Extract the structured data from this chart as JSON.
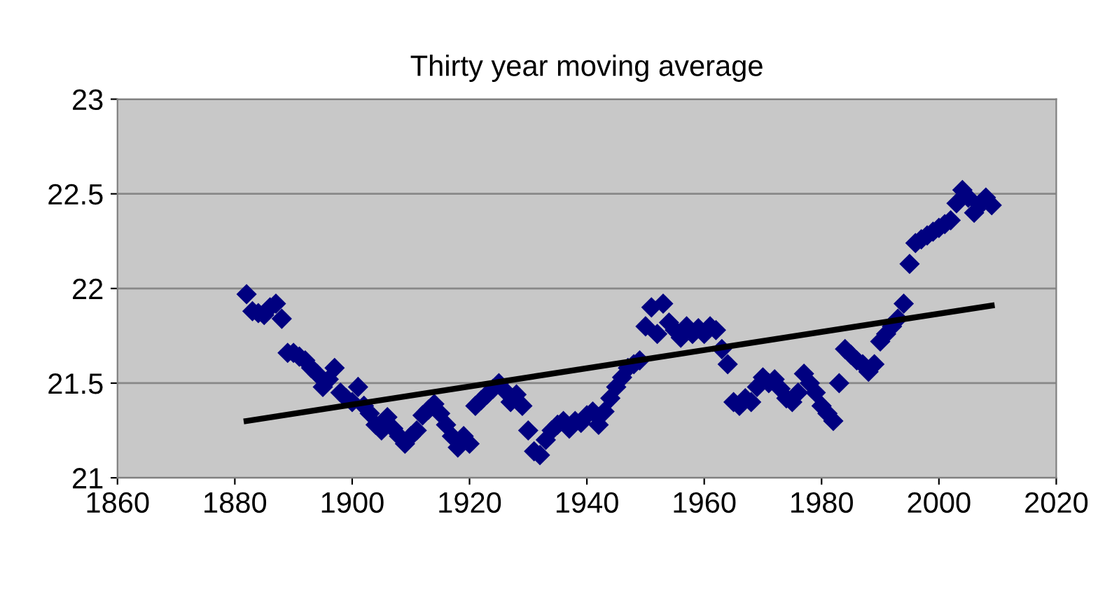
{
  "chart_data": {
    "type": "scatter",
    "title": "Thirty year moving average",
    "xlim": [
      1860,
      2020
    ],
    "xticks": [
      1860,
      1880,
      1900,
      1920,
      1940,
      1960,
      1980,
      2000,
      2020
    ],
    "ylim": [
      21,
      23
    ],
    "yticks": [
      21,
      21.5,
      22,
      22.5,
      23
    ],
    "grid": "y",
    "legend": false,
    "series": [
      {
        "color": "#000080",
        "marker": "diamond",
        "x": [
          1882,
          1883,
          1884,
          1885,
          1886,
          1887,
          1888,
          1889,
          1890,
          1891,
          1892,
          1893,
          1894,
          1895,
          1896,
          1897,
          1898,
          1899,
          1900,
          1901,
          1902,
          1903,
          1904,
          1905,
          1906,
          1907,
          1908,
          1909,
          1910,
          1911,
          1912,
          1913,
          1914,
          1915,
          1916,
          1917,
          1918,
          1919,
          1920,
          1921,
          1922,
          1923,
          1924,
          1925,
          1926,
          1927,
          1928,
          1929,
          1930,
          1931,
          1932,
          1933,
          1934,
          1935,
          1936,
          1937,
          1938,
          1939,
          1940,
          1941,
          1942,
          1943,
          1944,
          1945,
          1946,
          1947,
          1948,
          1949,
          1950,
          1951,
          1952,
          1953,
          1954,
          1955,
          1956,
          1957,
          1958,
          1959,
          1960,
          1961,
          1962,
          1963,
          1964,
          1965,
          1966,
          1967,
          1968,
          1969,
          1970,
          1971,
          1972,
          1973,
          1974,
          1975,
          1976,
          1977,
          1978,
          1979,
          1980,
          1981,
          1982,
          1983,
          1984,
          1985,
          1986,
          1987,
          1988,
          1989,
          1990,
          1991,
          1992,
          1993,
          1994,
          1995,
          1996,
          1997,
          1998,
          1999,
          2000,
          2001,
          2002,
          2003,
          2004,
          2005,
          2006,
          2007,
          2008,
          2009
        ],
        "values": [
          21.97,
          21.88,
          21.87,
          21.86,
          21.9,
          21.92,
          21.84,
          21.66,
          21.66,
          21.64,
          21.62,
          21.58,
          21.55,
          21.48,
          21.52,
          21.58,
          21.45,
          21.42,
          21.4,
          21.48,
          21.38,
          21.34,
          21.28,
          21.25,
          21.32,
          21.26,
          21.22,
          21.18,
          21.22,
          21.25,
          21.33,
          21.36,
          21.39,
          21.34,
          21.28,
          21.22,
          21.16,
          21.22,
          21.18,
          21.38,
          21.41,
          21.44,
          21.47,
          21.5,
          21.46,
          21.4,
          21.44,
          21.38,
          21.25,
          21.14,
          21.12,
          21.2,
          21.25,
          21.28,
          21.3,
          21.26,
          21.3,
          21.29,
          21.33,
          21.35,
          21.28,
          21.35,
          21.42,
          21.48,
          21.53,
          21.58,
          21.6,
          21.62,
          21.8,
          21.9,
          21.76,
          21.92,
          21.82,
          21.78,
          21.74,
          21.8,
          21.76,
          21.79,
          21.76,
          21.8,
          21.78,
          21.68,
          21.6,
          21.4,
          21.38,
          21.42,
          21.4,
          21.48,
          21.53,
          21.5,
          21.52,
          21.47,
          21.42,
          21.4,
          21.45,
          21.55,
          21.5,
          21.45,
          21.38,
          21.34,
          21.3,
          21.5,
          21.68,
          21.65,
          21.62,
          21.6,
          21.56,
          21.6,
          21.72,
          21.76,
          21.8,
          21.84,
          21.92,
          22.13,
          22.24,
          22.26,
          22.28,
          22.3,
          22.32,
          22.34,
          22.36,
          22.45,
          22.52,
          22.48,
          22.4,
          22.44,
          22.48,
          22.44
        ]
      },
      {
        "type": "line",
        "color": "#000000",
        "marker": "none",
        "line_style": "solid",
        "x": [
          1882,
          2009
        ],
        "values": [
          21.3,
          21.91
        ]
      }
    ]
  }
}
